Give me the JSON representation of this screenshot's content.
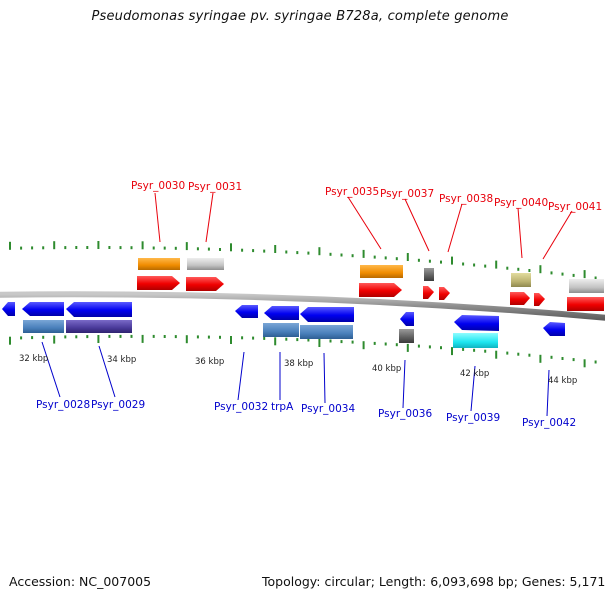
{
  "title": "Pseudomonas syringae pv. syringae B728a, complete genome",
  "footer": {
    "accession": "Accession: NC_007005",
    "summary": "Topology: circular; Length: 6,093,698 bp; Genes: 5,171"
  },
  "colors": {
    "forward_label": "#e8000b",
    "reverse_label": "#0000cc",
    "backbone": "#8a8a8a",
    "ticks": "#2e8b2e",
    "cds_forward": "#ff0000",
    "cds_reverse": "#0000ff"
  },
  "kbp_labels": [
    "32 kbp",
    "34 kbp",
    "36 kbp",
    "38 kbp",
    "40 kbp",
    "42 kbp",
    "44 kbp"
  ],
  "forward_labels": [
    "Psyr_0030",
    "Psyr_0031",
    "Psyr_0035",
    "Psyr_0037",
    "Psyr_0038",
    "Psyr_0040",
    "Psyr_0041"
  ],
  "reverse_labels": [
    "Psyr_0028",
    "Psyr_0029",
    "Psyr_0032",
    "trpA",
    "Psyr_0034",
    "Psyr_0036",
    "Psyr_0039",
    "Psyr_0042"
  ]
}
